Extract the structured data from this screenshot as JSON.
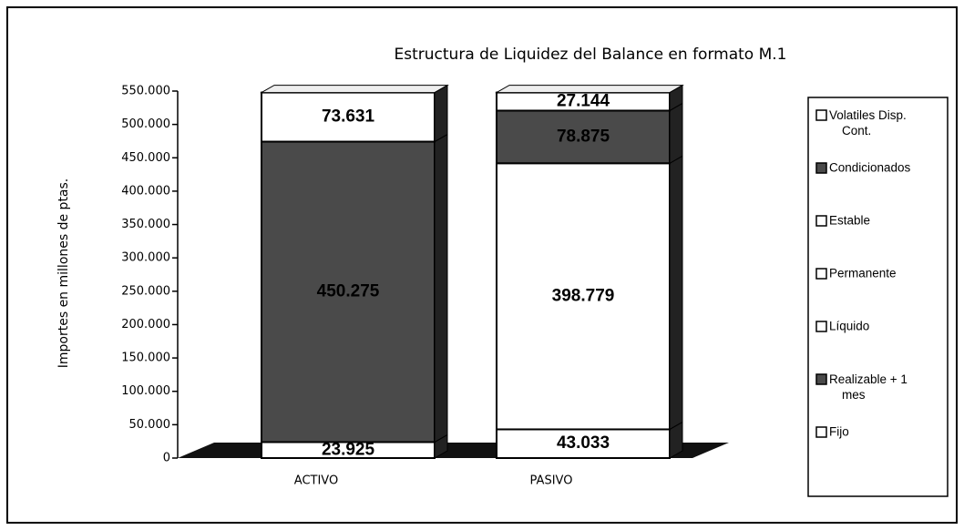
{
  "chart_data": {
    "type": "stacked_bar",
    "title": "Estructura de Liquidez del Balance en formato M.1",
    "y_label": "Importes en millones de ptas.",
    "categories": [
      "ACTIVO",
      "PASIVO"
    ],
    "series": [
      {
        "name": "Fijo",
        "color": "#ffffff",
        "values": [
          23925,
          null
        ],
        "value_labels": [
          "23.925",
          null
        ]
      },
      {
        "name": "Realizable + 1 mes",
        "color": "#4a4a4a",
        "values": [
          450275,
          null
        ],
        "value_labels": [
          "450.275",
          null
        ]
      },
      {
        "name": "Líquido",
        "color": "#ffffff",
        "values": [
          73631,
          null
        ],
        "value_labels": [
          "73.631",
          null
        ]
      },
      {
        "name": "Permanente",
        "color": "#ffffff",
        "values": [
          null,
          43033
        ],
        "value_labels": [
          null,
          "43.033"
        ]
      },
      {
        "name": "Estable",
        "color": "#ffffff",
        "values": [
          null,
          398779
        ],
        "value_labels": [
          null,
          "398.779"
        ]
      },
      {
        "name": "Condicionados",
        "color": "#4a4a4a",
        "values": [
          null,
          78875
        ],
        "value_labels": [
          null,
          "78.875"
        ]
      },
      {
        "name": "Volatiles Disp. Cont.",
        "color": "#ffffff",
        "values": [
          null,
          27144
        ],
        "value_labels": [
          null,
          "27.144"
        ]
      }
    ],
    "ylim": [
      0,
      550000
    ],
    "yticks": [
      0,
      {
        "value": 50000,
        "label": "50.000"
      },
      {
        "value": 100000,
        "label": "100.000"
      },
      {
        "value": 150000,
        "label": "150.000"
      },
      {
        "value": 200000,
        "label": "200.000"
      },
      {
        "value": 250000,
        "label": "250.000"
      },
      {
        "value": 300000,
        "label": "300.000"
      },
      {
        "value": 350000,
        "label": "350.000"
      },
      {
        "value": 400000,
        "label": "400.000"
      },
      {
        "value": 450000,
        "label": "450.000"
      },
      {
        "value": 500000,
        "label": "500.000"
      },
      {
        "value": 550000,
        "label": "550.000"
      }
    ],
    "legend": "right"
  }
}
